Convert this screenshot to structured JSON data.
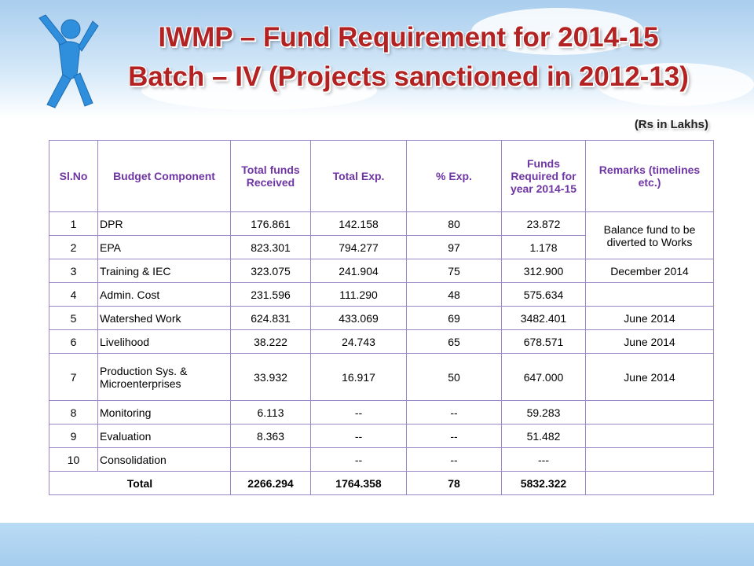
{
  "header": {
    "title_line1": "IWMP – Fund Requirement for 2014-15",
    "title_line2": "Batch – IV (Projects sanctioned in 2012-13)"
  },
  "unit": "(Rs in Lakhs)",
  "table": {
    "columns": [
      "Sl.No",
      "Budget Component",
      "Total funds Received",
      "Total Exp.",
      "% Exp.",
      "Funds Required for year 2014-15",
      "Remarks (timelines etc.)"
    ],
    "rows": [
      {
        "sl": "1",
        "component": "DPR",
        "received": "176.861",
        "exp": "142.158",
        "pct": "80",
        "required": "23.872"
      },
      {
        "sl": "2",
        "component": "EPA",
        "received": "823.301",
        "exp": "794.277",
        "pct": "97",
        "required": "1.178"
      },
      {
        "sl": "3",
        "component": "Training & IEC",
        "received": "323.075",
        "exp": "241.904",
        "pct": "75",
        "required": "312.900"
      },
      {
        "sl": "4",
        "component": "Admin. Cost",
        "received": "231.596",
        "exp": "111.290",
        "pct": "48",
        "required": "575.634"
      },
      {
        "sl": "5",
        "component": "Watershed Work",
        "received": "624.831",
        "exp": "433.069",
        "pct": "69",
        "required": "3482.401"
      },
      {
        "sl": "6",
        "component": "Livelihood",
        "received": "38.222",
        "exp": "24.743",
        "pct": "65",
        "required": "678.571"
      },
      {
        "sl": "7",
        "component": "Production Sys. & Microenterprises",
        "received": "33.932",
        "exp": "16.917",
        "pct": "50",
        "required": "647.000"
      },
      {
        "sl": "8",
        "component": "Monitoring",
        "received": "6.113",
        "exp": "--",
        "pct": "--",
        "required": "59.283"
      },
      {
        "sl": "9",
        "component": "Evaluation",
        "received": "8.363",
        "exp": "--",
        "pct": "--",
        "required": "51.482"
      },
      {
        "sl": "10",
        "component": "Consolidation",
        "exp": "--",
        "pct": "--",
        "required": "---"
      }
    ],
    "remarks": [
      {
        "text": "Balance fund to be diverted to Works",
        "rows": [
          1,
          2
        ]
      },
      {
        "text": "December 2014",
        "rows": [
          3
        ]
      },
      {
        "text": "June 2014",
        "rows": [
          5
        ]
      },
      {
        "text": "June 2014",
        "rows": [
          6
        ]
      },
      {
        "text": "June 2014",
        "rows": [
          7
        ]
      }
    ],
    "total": {
      "label": "Total",
      "received": "2266.294",
      "exp": "1764.358",
      "pct": "78",
      "required": "5832.322"
    }
  }
}
